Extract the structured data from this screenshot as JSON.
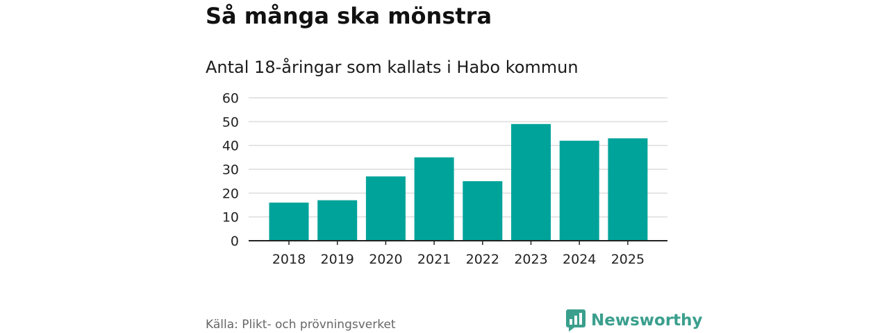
{
  "header": {
    "title": "Så många ska mönstra",
    "subtitle": "Antal 18-åringar som kallats i Habo kommun"
  },
  "footer": {
    "source": "Källa: Plikt- och prövningsverket",
    "brand": "Newsworthy",
    "brand_icon": "newsworthy-logo-icon"
  },
  "colors": {
    "bar": "#00a39a",
    "grid": "#dcdcdc",
    "axis": "#222222",
    "brand": "#3a9f8d"
  },
  "chart_data": {
    "type": "bar",
    "title": "Så många ska mönstra",
    "subtitle": "Antal 18-åringar som kallats i Habo kommun",
    "categories": [
      "2018",
      "2019",
      "2020",
      "2021",
      "2022",
      "2023",
      "2024",
      "2025"
    ],
    "values": [
      16,
      17,
      27,
      35,
      25,
      49,
      42,
      43
    ],
    "yticks": [
      "0",
      "10",
      "20",
      "30",
      "40",
      "50",
      "60"
    ],
    "ylim": [
      0,
      60
    ],
    "xlabel": "",
    "ylabel": "",
    "grid": true,
    "legend": "none"
  }
}
